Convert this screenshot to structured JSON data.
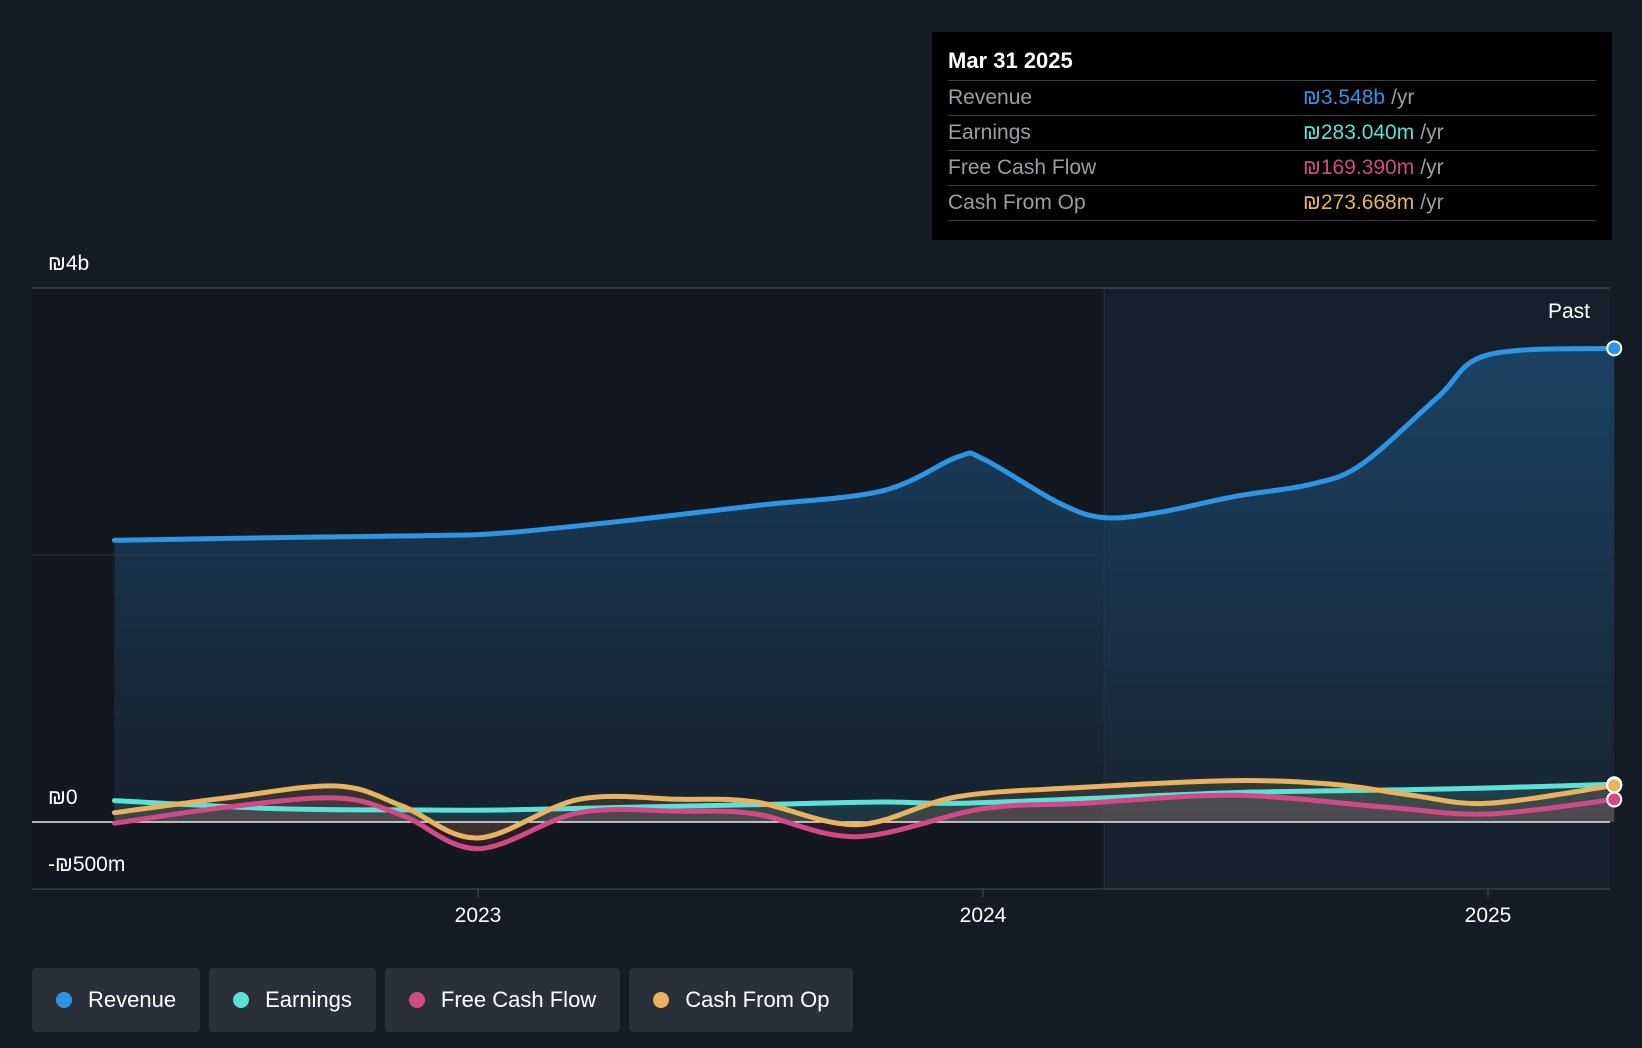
{
  "chart_data": {
    "type": "area",
    "y_tick_labels": [
      "₪4b",
      "₪0",
      "-₪500m"
    ],
    "x_tick_labels": [
      "2023",
      "2024",
      "2025"
    ],
    "ylim": [
      -500,
      4000
    ],
    "region_label": "Past",
    "series": [
      {
        "name": "Revenue",
        "color": "#2d95e3",
        "points": [
          [
            2022.28,
            2110
          ],
          [
            2022.6,
            2130
          ],
          [
            2022.9,
            2145
          ],
          [
            2023.05,
            2165
          ],
          [
            2023.3,
            2260
          ],
          [
            2023.55,
            2370
          ],
          [
            2023.8,
            2480
          ],
          [
            2023.95,
            2735
          ],
          [
            2024.0,
            2720
          ],
          [
            2024.15,
            2390
          ],
          [
            2024.24,
            2280
          ],
          [
            2024.35,
            2320
          ],
          [
            2024.5,
            2440
          ],
          [
            2024.65,
            2530
          ],
          [
            2024.75,
            2680
          ],
          [
            2024.9,
            3180
          ],
          [
            2025.0,
            3500
          ],
          [
            2025.25,
            3548
          ]
        ]
      },
      {
        "name": "Earnings",
        "color": "#5ce1d6",
        "points": [
          [
            2022.28,
            160
          ],
          [
            2022.6,
            100
          ],
          [
            2022.9,
            90
          ],
          [
            2023.05,
            90
          ],
          [
            2023.3,
            110
          ],
          [
            2023.55,
            130
          ],
          [
            2023.8,
            150
          ],
          [
            2023.95,
            140
          ],
          [
            2024.2,
            175
          ],
          [
            2024.5,
            220
          ],
          [
            2024.8,
            240
          ],
          [
            2025.0,
            255
          ],
          [
            2025.25,
            283
          ]
        ]
      },
      {
        "name": "Free Cash Flow",
        "color": "#d24a85",
        "points": [
          [
            2022.28,
            -10
          ],
          [
            2022.5,
            110
          ],
          [
            2022.72,
            180
          ],
          [
            2022.85,
            50
          ],
          [
            2023.0,
            -200
          ],
          [
            2023.2,
            70
          ],
          [
            2023.4,
            80
          ],
          [
            2023.55,
            60
          ],
          [
            2023.75,
            -110
          ],
          [
            2024.0,
            100
          ],
          [
            2024.2,
            140
          ],
          [
            2024.5,
            200
          ],
          [
            2024.8,
            110
          ],
          [
            2025.0,
            60
          ],
          [
            2025.25,
            169
          ]
        ]
      },
      {
        "name": "Cash From Op",
        "color": "#e8b25e",
        "points": [
          [
            2022.28,
            70
          ],
          [
            2022.5,
            180
          ],
          [
            2022.72,
            270
          ],
          [
            2022.85,
            120
          ],
          [
            2023.0,
            -120
          ],
          [
            2023.2,
            170
          ],
          [
            2023.4,
            170
          ],
          [
            2023.55,
            150
          ],
          [
            2023.75,
            -20
          ],
          [
            2023.95,
            190
          ],
          [
            2024.2,
            260
          ],
          [
            2024.5,
            310
          ],
          [
            2024.7,
            280
          ],
          [
            2024.85,
            200
          ],
          [
            2025.0,
            140
          ],
          [
            2025.25,
            274
          ]
        ]
      }
    ]
  },
  "tooltip": {
    "date": "Mar 31 2025",
    "rows": [
      {
        "label": "Revenue",
        "value": "₪3.548b",
        "unit": "/yr",
        "color": "#2d95e3"
      },
      {
        "label": "Earnings",
        "value": "₪283.040m",
        "unit": "/yr",
        "color": "#5ce1d6"
      },
      {
        "label": "Free Cash Flow",
        "value": "₪169.390m",
        "unit": "/yr",
        "color": "#d24a85"
      },
      {
        "label": "Cash From Op",
        "value": "₪273.668m",
        "unit": "/yr",
        "color": "#e8b25e"
      }
    ]
  },
  "legend": [
    {
      "label": "Revenue",
      "color": "#2d95e3"
    },
    {
      "label": "Earnings",
      "color": "#5ce1d6"
    },
    {
      "label": "Free Cash Flow",
      "color": "#d24a85"
    },
    {
      "label": "Cash From Op",
      "color": "#e8b25e"
    }
  ]
}
